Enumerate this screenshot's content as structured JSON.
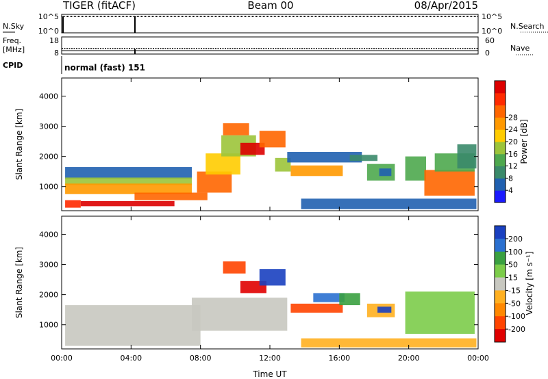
{
  "header": {
    "radar": "TIGER (fitACF)",
    "beam": "Beam 00",
    "date": "08/Apr/2015"
  },
  "panels": {
    "nsky": {
      "label": "N.Sky",
      "left_ticks": [
        "10^5",
        "10^0"
      ],
      "right_ticks": [
        "10^5",
        "10^0"
      ],
      "right_label": "N.Search"
    },
    "freq": {
      "label_line1": "Freq.",
      "label_line2": "[MHz]",
      "left_ticks": [
        "18",
        "8"
      ],
      "right_ticks": [
        "60",
        "0"
      ],
      "right_label": "Nave"
    },
    "cpid": {
      "label": "CPID",
      "value": "normal (fast) 151"
    }
  },
  "chart_data": [
    {
      "type": "heatmap",
      "name": "power",
      "ylabel": "Slant Range [km]",
      "xlabel": "",
      "ylim": [
        200,
        4600
      ],
      "y_ticks": [
        "1000",
        "2000",
        "3000",
        "4000"
      ],
      "x_ticks": [
        "00:00",
        "04:00",
        "08:00",
        "12:00",
        "16:00",
        "20:00",
        "00:00"
      ],
      "colorbar": {
        "label": "Power [dB]",
        "ticks": [
          "4",
          "8",
          "12",
          "16",
          "20",
          "24",
          "28"
        ],
        "colors": [
          "#1a1aff",
          "#2060b0",
          "#3a8a6a",
          "#4ea84e",
          "#9cc43a",
          "#ffcc00",
          "#ff9900",
          "#ff6600",
          "#ff2a00",
          "#dd0000"
        ]
      },
      "regions": [
        {
          "t0": 0.2,
          "t1": 1.1,
          "r0": 300,
          "r1": 550,
          "level": 8
        },
        {
          "t0": 1.1,
          "t1": 6.5,
          "r0": 350,
          "r1": 520,
          "level": 9
        },
        {
          "t0": 0.2,
          "t1": 7.5,
          "r0": 1250,
          "r1": 1650,
          "level": 1
        },
        {
          "t0": 0.2,
          "t1": 7.5,
          "r0": 1050,
          "r1": 1300,
          "level": 4
        },
        {
          "t0": 0.2,
          "t1": 7.5,
          "r0": 750,
          "r1": 1100,
          "level": 6
        },
        {
          "t0": 4.2,
          "t1": 8.4,
          "r0": 550,
          "r1": 800,
          "level": 7
        },
        {
          "t0": 7.8,
          "t1": 9.8,
          "r0": 800,
          "r1": 1500,
          "level": 7
        },
        {
          "t0": 8.3,
          "t1": 10.3,
          "r0": 1400,
          "r1": 2100,
          "level": 5
        },
        {
          "t0": 9.2,
          "t1": 11.2,
          "r0": 2000,
          "r1": 2700,
          "level": 4
        },
        {
          "t0": 9.3,
          "t1": 10.8,
          "r0": 2700,
          "r1": 3100,
          "level": 7
        },
        {
          "t0": 10.3,
          "t1": 11.7,
          "r0": 2050,
          "r1": 2450,
          "level": 9
        },
        {
          "t0": 11.4,
          "t1": 12.9,
          "r0": 2300,
          "r1": 2850,
          "level": 7
        },
        {
          "t0": 12.3,
          "t1": 13.2,
          "r0": 1500,
          "r1": 1950,
          "level": 4
        },
        {
          "t0": 13.2,
          "t1": 16.2,
          "r0": 1350,
          "r1": 1700,
          "level": 6
        },
        {
          "t0": 13.0,
          "t1": 17.3,
          "r0": 1800,
          "r1": 2150,
          "level": 1
        },
        {
          "t0": 16.6,
          "t1": 18.2,
          "r0": 1850,
          "r1": 2050,
          "level": 2
        },
        {
          "t0": 17.6,
          "t1": 19.2,
          "r0": 1200,
          "r1": 1750,
          "level": 3
        },
        {
          "t0": 18.3,
          "t1": 19.0,
          "r0": 1350,
          "r1": 1600,
          "level": 1
        },
        {
          "t0": 19.8,
          "t1": 21.0,
          "r0": 1200,
          "r1": 2000,
          "level": 3
        },
        {
          "t0": 20.9,
          "t1": 23.8,
          "r0": 700,
          "r1": 1550,
          "level": 7
        },
        {
          "t0": 21.5,
          "t1": 23.8,
          "r0": 1500,
          "r1": 2100,
          "level": 3
        },
        {
          "t0": 22.8,
          "t1": 23.9,
          "r0": 1600,
          "r1": 2400,
          "level": 2
        },
        {
          "t0": 13.8,
          "t1": 23.9,
          "r0": 250,
          "r1": 600,
          "level": 1
        }
      ]
    },
    {
      "type": "heatmap",
      "name": "velocity",
      "ylabel": "Slant Range [km]",
      "xlabel": "Time UT",
      "ylim": [
        200,
        4600
      ],
      "y_ticks": [
        "1000",
        "2000",
        "3000",
        "4000"
      ],
      "x_ticks": [
        "00:00",
        "04:00",
        "08:00",
        "12:00",
        "16:00",
        "20:00",
        "00:00"
      ],
      "colorbar": {
        "label": "Velocity [m s⁻¹]",
        "ticks": [
          "200",
          "100",
          "50",
          "15",
          "-15",
          "-50",
          "-100",
          "-200"
        ],
        "colors": [
          "#1a40c0",
          "#2a70d0",
          "#3aa040",
          "#7ccc4a",
          "#c8c8c0",
          "#ffb020",
          "#ff8800",
          "#ff4400",
          "#e00000"
        ]
      },
      "regions": [
        {
          "t0": 0.2,
          "t1": 8.0,
          "r0": 300,
          "r1": 1650,
          "level": 4
        },
        {
          "t0": 7.5,
          "t1": 13.0,
          "r0": 800,
          "r1": 1900,
          "level": 4
        },
        {
          "t0": 9.3,
          "t1": 10.6,
          "r0": 2700,
          "r1": 3100,
          "level": 7
        },
        {
          "t0": 10.3,
          "t1": 11.8,
          "r0": 2050,
          "r1": 2450,
          "level": 8
        },
        {
          "t0": 11.4,
          "t1": 12.9,
          "r0": 2300,
          "r1": 2850,
          "level": 0
        },
        {
          "t0": 13.2,
          "t1": 16.2,
          "r0": 1400,
          "r1": 1700,
          "level": 7
        },
        {
          "t0": 14.5,
          "t1": 16.3,
          "r0": 1750,
          "r1": 2050,
          "level": 1
        },
        {
          "t0": 16.0,
          "t1": 17.2,
          "r0": 1650,
          "r1": 2050,
          "level": 2
        },
        {
          "t0": 17.6,
          "t1": 19.2,
          "r0": 1250,
          "r1": 1700,
          "level": 5
        },
        {
          "t0": 18.2,
          "t1": 19.0,
          "r0": 1400,
          "r1": 1600,
          "level": 0
        },
        {
          "t0": 19.8,
          "t1": 23.8,
          "r0": 700,
          "r1": 2100,
          "level": 3
        },
        {
          "t0": 13.8,
          "t1": 23.9,
          "r0": 250,
          "r1": 550,
          "level": 5
        }
      ]
    }
  ]
}
